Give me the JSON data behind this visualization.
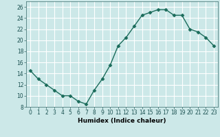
{
  "x": [
    0,
    1,
    2,
    3,
    4,
    5,
    6,
    7,
    8,
    9,
    10,
    11,
    12,
    13,
    14,
    15,
    16,
    17,
    18,
    19,
    20,
    21,
    22,
    23
  ],
  "y": [
    14.5,
    13,
    12,
    11,
    10,
    10,
    9,
    8.5,
    11,
    13,
    15.5,
    19,
    20.5,
    22.5,
    24.5,
    25,
    25.5,
    25.5,
    24.5,
    24.5,
    22,
    21.5,
    20.5,
    19
  ],
  "line_color": "#1a6b5a",
  "marker_color": "#1a6b5a",
  "bg_color": "#cce8e8",
  "grid_color": "#ffffff",
  "xlabel": "Humidex (Indice chaleur)",
  "ylim": [
    8,
    27
  ],
  "xlim": [
    -0.5,
    23.5
  ],
  "yticks": [
    8,
    10,
    12,
    14,
    16,
    18,
    20,
    22,
    24,
    26
  ],
  "xticks": [
    0,
    1,
    2,
    3,
    4,
    5,
    6,
    7,
    8,
    9,
    10,
    11,
    12,
    13,
    14,
    15,
    16,
    17,
    18,
    19,
    20,
    21,
    22,
    23
  ],
  "xlabel_fontsize": 6.5,
  "tick_fontsize": 5.5,
  "marker_size": 2.5,
  "line_width": 1.0
}
